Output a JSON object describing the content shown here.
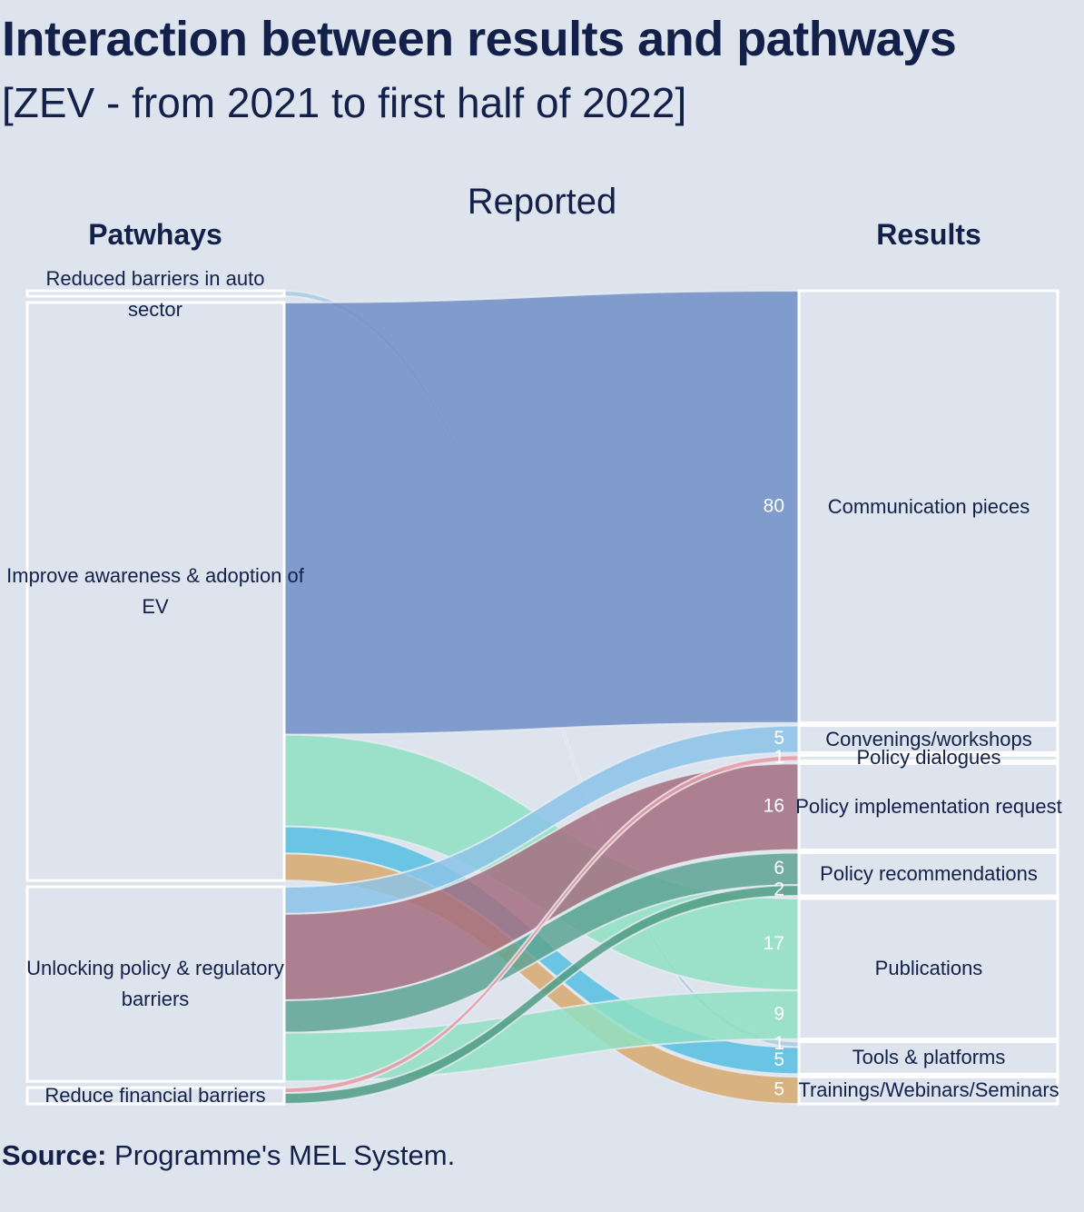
{
  "title": "Interaction between results and pathways",
  "subtitle": "[ZEV - from 2021 to first half of 2022]",
  "source_label": "Source:",
  "source_text": "Programme's MEL System.",
  "chart_data": {
    "type": "sankey",
    "title": "Reported",
    "left_header": "Patwhays",
    "right_header": "Results",
    "sources": [
      "Reduced barriers in auto sector",
      "Improve awareness & adoption of EV",
      "Unlocking policy & regulatory barriers",
      "Reduce financial barriers"
    ],
    "targets": [
      "Communication pieces",
      "Convenings/workshops",
      "Policy dialogues",
      "Policy implementation request",
      "Policy recommendations",
      "Publications",
      "Tools & platforms",
      "Trainings/Webinars/Seminars"
    ],
    "links": [
      {
        "source": 0,
        "target": 6,
        "value": 1,
        "color": "#a4cde3"
      },
      {
        "source": 1,
        "target": 0,
        "value": 80,
        "color": "#6f8fc6"
      },
      {
        "source": 1,
        "target": 5,
        "value": 17,
        "color": "#8fdfc2"
      },
      {
        "source": 1,
        "target": 6,
        "value": 5,
        "color": "#55c0e0"
      },
      {
        "source": 1,
        "target": 7,
        "value": 5,
        "color": "#d8a96e"
      },
      {
        "source": 2,
        "target": 1,
        "value": 5,
        "color": "#8cc3e8"
      },
      {
        "source": 2,
        "target": 3,
        "value": 16,
        "color": "#a56f80"
      },
      {
        "source": 2,
        "target": 4,
        "value": 6,
        "color": "#5fa393"
      },
      {
        "source": 2,
        "target": 5,
        "value": 9,
        "color": "#8fdfc2"
      },
      {
        "source": 3,
        "target": 2,
        "value": 1,
        "color": "#e89aa2"
      },
      {
        "source": 3,
        "target": 4,
        "value": 2,
        "color": "#4f9c84"
      }
    ]
  }
}
